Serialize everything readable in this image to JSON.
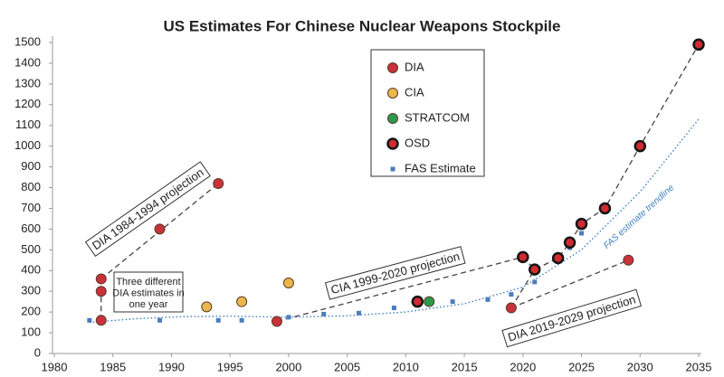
{
  "chart_data": {
    "type": "scatter",
    "title": "US Estimates For Chinese Nuclear Weapons Stockpile",
    "xlim": [
      1980,
      2035
    ],
    "xticks": [
      1980,
      1985,
      1990,
      1995,
      2000,
      2005,
      2010,
      2015,
      2020,
      2025,
      2030,
      2035
    ],
    "ylim": [
      0,
      1500
    ],
    "yticks": [
      0,
      100,
      200,
      300,
      400,
      500,
      600,
      700,
      800,
      900,
      1000,
      1100,
      1200,
      1300,
      1400,
      1500
    ],
    "grid": false,
    "series": [
      {
        "name": "DIA",
        "color": "#c9323a",
        "marker": "circle",
        "x": [
          1984,
          1984,
          1984,
          1989,
          1994,
          1999,
          2019,
          2029
        ],
        "values": [
          160,
          300,
          360,
          600,
          820,
          155,
          220,
          450
        ]
      },
      {
        "name": "CIA",
        "color": "#e9b84c",
        "marker": "circle",
        "x": [
          1993,
          1996,
          2000
        ],
        "values": [
          225,
          250,
          340
        ]
      },
      {
        "name": "STRATCOM",
        "color": "#2c9a4c",
        "marker": "circle",
        "x": [
          2012
        ],
        "values": [
          250
        ]
      },
      {
        "name": "OSD",
        "color": "#d12a30",
        "marker": "ring",
        "x": [
          2011,
          2020,
          2021,
          2023,
          2024,
          2025,
          2027,
          2030,
          2035
        ],
        "values": [
          250,
          465,
          405,
          460,
          535,
          625,
          700,
          1000,
          1490
        ]
      },
      {
        "name": "FAS Estimate",
        "color": "#4b7cbb",
        "marker": "square",
        "x": [
          1983,
          1989,
          1994,
          1996,
          2000,
          2003,
          2006,
          2009,
          2014,
          2017,
          2019,
          2021,
          2024,
          2025
        ],
        "values": [
          160,
          160,
          160,
          160,
          175,
          190,
          195,
          220,
          250,
          260,
          285,
          345,
          510,
          580
        ]
      }
    ],
    "trendline": {
      "label": "FAS estimate trendline",
      "color": "#3f7fbf",
      "x": [
        1983,
        1987,
        1991,
        1995,
        2000,
        2005,
        2010,
        2015,
        2020,
        2025,
        2030,
        2035
      ],
      "values": [
        150,
        168,
        178,
        180,
        175,
        182,
        200,
        240,
        320,
        500,
        780,
        1130
      ]
    },
    "annotations": [
      "DIA 1984-1994 projection",
      "CIA 1999-2020 projection",
      "DIA 2019-2029 projection"
    ],
    "note": [
      "Three different",
      "DIA estimates in",
      "one year"
    ]
  }
}
